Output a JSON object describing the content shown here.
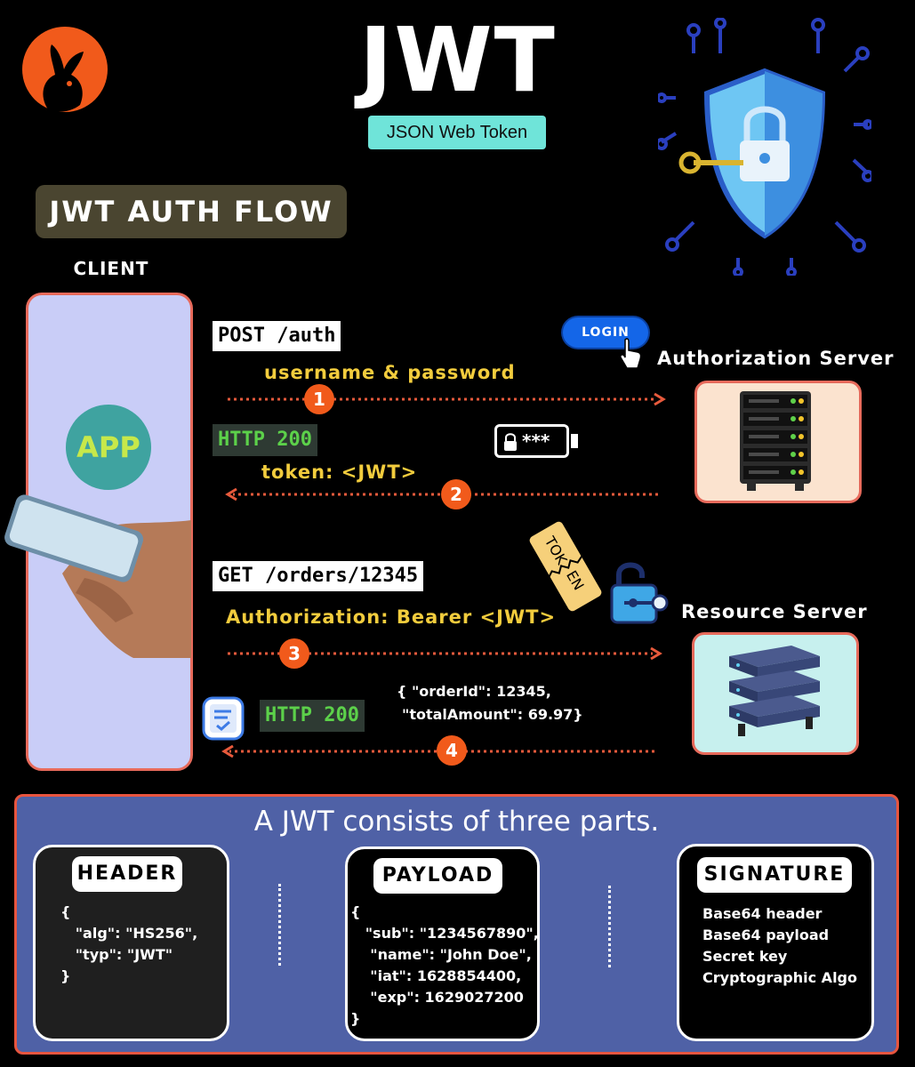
{
  "header": {
    "title": "JWT",
    "subtitle": "JSON Web Token"
  },
  "flow": {
    "title": "JWT AUTH FLOW",
    "client_label": "CLIENT",
    "app_label": "APP",
    "auth_server_label": "Authorization Server",
    "resource_server_label": "Resource Server",
    "login_button": "LOGIN",
    "password_mask": "***",
    "ticket_text": "TOK EN",
    "steps": [
      {
        "number": "1",
        "request": "POST /auth",
        "detail": "username & password"
      },
      {
        "number": "2",
        "status": "HTTP 200",
        "detail": "token:  <JWT>"
      },
      {
        "number": "3",
        "request": "GET /orders/12345",
        "detail": "Authorization: Bearer <JWT>"
      },
      {
        "number": "4",
        "status": "HTTP 200",
        "json_line1": "{ \"orderId\": 12345,",
        "json_line2": "\"totalAmount\": 69.97}"
      }
    ]
  },
  "parts": {
    "title": "A JWT consists of three parts.",
    "header": {
      "label": "HEADER",
      "body": "{\n   \"alg\": \"HS256\",\n   \"typ\": \"JWT\"\n}"
    },
    "payload": {
      "label": "PAYLOAD",
      "body": "{\n   \"sub\": \"1234567890\",\n    \"name\": \"John Doe\",\n    \"iat\": 1628854400,\n    \"exp\": 1629027200\n}"
    },
    "signature": {
      "label": "SIGNATURE",
      "body": "Base64 header\nBase64 payload\nSecret key\nCryptographic Algo"
    }
  },
  "colors": {
    "accent_orange": "#f15a1b",
    "border_red": "#e76a5b",
    "label_yellow": "#f2cc3d",
    "status_green": "#5cd14a",
    "panel_blue": "#4f61a6",
    "subtitle_teal": "#6fe4d9"
  }
}
